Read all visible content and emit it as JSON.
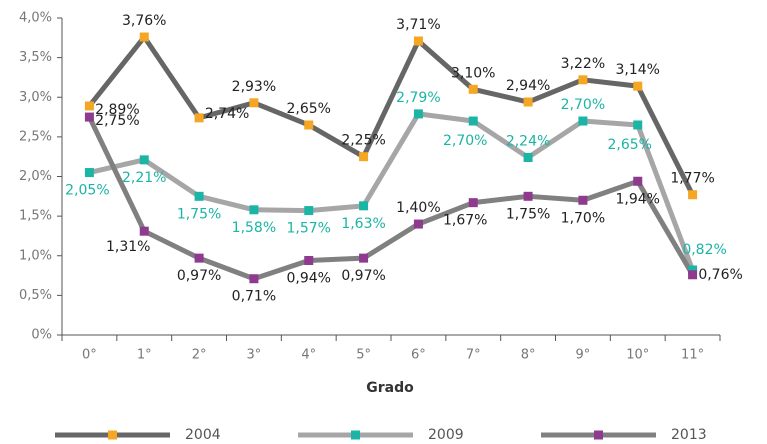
{
  "chart_data": {
    "type": "line",
    "x_label": "Grado",
    "categories": [
      "0°",
      "1°",
      "2°",
      "3°",
      "4°",
      "5°",
      "6°",
      "7°",
      "8°",
      "9°",
      "10°",
      "11°"
    ],
    "series": [
      {
        "name": "2004",
        "color": "#666666",
        "marker_color": "#f5a623",
        "label_color": "#222222",
        "values": [
          2.89,
          3.76,
          2.74,
          2.93,
          2.65,
          2.25,
          3.71,
          3.1,
          2.94,
          3.22,
          3.14,
          1.77
        ],
        "value_labels": [
          "2,89%",
          "3,76%",
          "2,74%",
          "2,93%",
          "2,65%",
          "2,25%",
          "3,71%",
          "3,10%",
          "2,94%",
          "3,22%",
          "3,14%",
          "1,77%"
        ]
      },
      {
        "name": "2009",
        "color": "#a6a6a6",
        "marker_color": "#1bb5a5",
        "label_color": "#1bb5a5",
        "values": [
          2.05,
          2.21,
          1.75,
          1.58,
          1.57,
          1.63,
          2.79,
          2.7,
          2.24,
          2.7,
          2.65,
          0.82
        ],
        "value_labels": [
          "2,05%",
          "2,21%",
          "1,75%",
          "1,58%",
          "1,57%",
          "1,63%",
          "2,79%",
          "2,70%",
          "2,24%",
          "2,70%",
          "2,65%",
          "0,82%"
        ]
      },
      {
        "name": "2013",
        "color": "#808080",
        "marker_color": "#8e3a8e",
        "label_color": "#222222",
        "values": [
          2.75,
          1.31,
          0.97,
          0.71,
          0.94,
          0.97,
          1.4,
          1.67,
          1.75,
          1.7,
          1.94,
          0.76
        ],
        "value_labels": [
          "2,75%",
          "1,31%",
          "0,97%",
          "0,71%",
          "0,94%",
          "0,97%",
          "1,40%",
          "1,67%",
          "1,75%",
          "1,70%",
          "1,94%",
          "0,76%"
        ]
      }
    ],
    "ylim": [
      0,
      4
    ],
    "yticks": [
      {
        "value": 0,
        "label": "0%"
      },
      {
        "value": 0.5,
        "label": "0,5%"
      },
      {
        "value": 1,
        "label": "1,0%"
      },
      {
        "value": 1.5,
        "label": "1,5%"
      },
      {
        "value": 2,
        "label": "2,0%"
      },
      {
        "value": 2.5,
        "label": "2,5%"
      },
      {
        "value": 3,
        "label": "3,0%"
      },
      {
        "value": 3.5,
        "label": "3,5%"
      },
      {
        "value": 4,
        "label": "4,0%"
      }
    ],
    "legend": "bottom"
  }
}
